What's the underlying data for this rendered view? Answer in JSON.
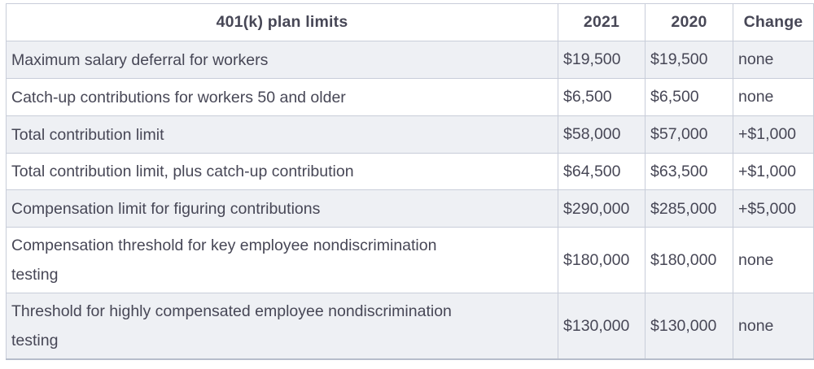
{
  "chart_data": {
    "type": "table",
    "title": "401(k) plan limits",
    "columns": [
      "401(k) plan limits",
      "2021",
      "2020",
      "Change"
    ],
    "rows": [
      {
        "label": "Maximum salary deferral for workers",
        "y2021": "$19,500",
        "y2020": "$19,500",
        "change": "none"
      },
      {
        "label": "Catch-up contributions for workers 50 and older",
        "y2021": "$6,500",
        "y2020": "$6,500",
        "change": "none"
      },
      {
        "label": "Total contribution limit",
        "y2021": "$58,000",
        "y2020": "$57,000",
        "change": "+$1,000"
      },
      {
        "label": "Total contribution limit, plus catch-up contribution",
        "y2021": "$64,500",
        "y2020": "$63,500",
        "change": "+$1,000"
      },
      {
        "label": "Compensation limit for figuring contributions",
        "y2021": "$290,000",
        "y2020": "$285,000",
        "change": "+$5,000"
      },
      {
        "label": "Compensation threshold for key employee nondiscrimination testing",
        "y2021": "$180,000",
        "y2020": "$180,000",
        "change": "none"
      },
      {
        "label": "Threshold for highly compensated employee nondiscrimination testing",
        "y2021": "$130,000",
        "y2020": "$130,000",
        "change": "none"
      }
    ],
    "layout": {
      "striped_rows": "odd rows shaded",
      "header_alignment": "center",
      "cell_alignment": "left"
    },
    "colors": {
      "text": "#474756",
      "stripe_background": "#eef0f4",
      "row_background": "#ffffff",
      "border": "#c8cdd9",
      "bottom_border": "#b6bdcb"
    }
  }
}
